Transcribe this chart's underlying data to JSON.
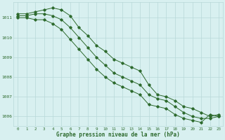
{
  "x": [
    0,
    1,
    2,
    3,
    4,
    5,
    6,
    7,
    8,
    9,
    10,
    11,
    12,
    13,
    14,
    15,
    16,
    17,
    18,
    19,
    20,
    21,
    22,
    23
  ],
  "line1": [
    1011.2,
    1011.2,
    1011.3,
    1011.4,
    1011.5,
    1011.4,
    1011.1,
    1010.5,
    1010.1,
    1009.6,
    1009.3,
    1008.9,
    1008.7,
    1008.5,
    1008.3,
    1007.6,
    1007.1,
    1007.0,
    1006.8,
    1006.5,
    1006.4,
    1006.2,
    1006.0,
    1006.1
  ],
  "line2": [
    1011.1,
    1011.1,
    1011.2,
    1011.2,
    1011.1,
    1010.9,
    1010.5,
    1010.0,
    1009.5,
    1009.0,
    1008.6,
    1008.2,
    1008.0,
    1007.8,
    1007.6,
    1007.1,
    1006.9,
    1006.8,
    1006.5,
    1006.2,
    1006.0,
    1005.9,
    1005.9,
    1006.0
  ],
  "line3": [
    1011.0,
    1011.0,
    1010.9,
    1010.9,
    1010.7,
    1010.4,
    1009.9,
    1009.4,
    1008.9,
    1008.4,
    1008.0,
    1007.7,
    1007.5,
    1007.3,
    1007.1,
    1006.6,
    1006.5,
    1006.4,
    1006.1,
    1005.9,
    1005.8,
    1005.7,
    1006.1,
    1006.0
  ],
  "line_color": "#2d6a2d",
  "bg_color": "#d8f0f0",
  "grid_color": "#b8d8d8",
  "xlabel": "Graphe pression niveau de la mer (hPa)",
  "ylim": [
    1005.5,
    1011.8
  ],
  "yticks": [
    1006,
    1007,
    1008,
    1009,
    1010,
    1011
  ],
  "xticks": [
    0,
    1,
    2,
    3,
    4,
    5,
    6,
    7,
    8,
    9,
    10,
    11,
    12,
    13,
    14,
    15,
    16,
    17,
    18,
    19,
    20,
    21,
    22,
    23
  ]
}
